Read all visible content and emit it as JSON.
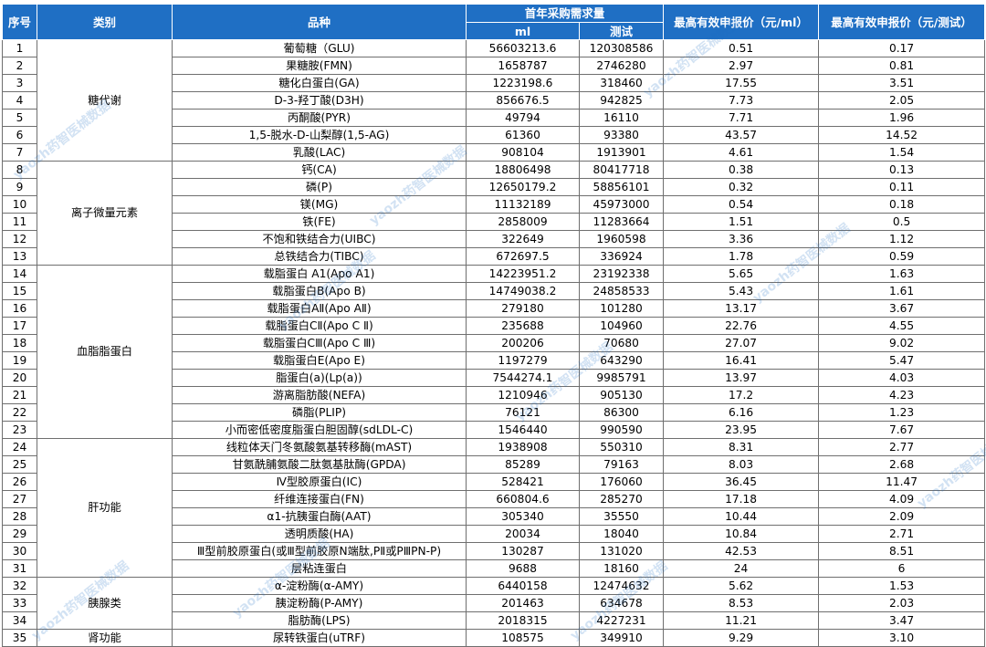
{
  "headers": {
    "seq": "序号",
    "category": "类别",
    "item": "品种",
    "demand": "首年采购需求量",
    "ml": "ml",
    "test": "测试",
    "price_ml": "最高有效申报价（元/ml）",
    "price_test": "最高有效申报价（元/测试）"
  },
  "watermark": "yaozh药智医械数据",
  "categories": [
    {
      "name": "糖代谢",
      "rows": [
        {
          "seq": "1",
          "item": "葡萄糖（GLU)",
          "ml": "56603213.6",
          "test": "120308586",
          "price_ml": "0.51",
          "price_test": "0.17"
        },
        {
          "seq": "2",
          "item": "果糖胺(FMN)",
          "ml": "1658787",
          "test": "2746280",
          "price_ml": "2.97",
          "price_test": "0.81"
        },
        {
          "seq": "3",
          "item": "糖化白蛋白(GA)",
          "ml": "1223198.6",
          "test": "318460",
          "price_ml": "17.55",
          "price_test": "3.51"
        },
        {
          "seq": "4",
          "item": "D-3-羟丁酸(D3H)",
          "ml": "856676.5",
          "test": "942825",
          "price_ml": "7.73",
          "price_test": "2.05"
        },
        {
          "seq": "5",
          "item": "丙酮酸(PYR)",
          "ml": "49794",
          "test": "16110",
          "price_ml": "7.71",
          "price_test": "1.96"
        },
        {
          "seq": "6",
          "item": "1,5-脱水-D-山梨醇(1,5-AG)",
          "ml": "61360",
          "test": "93380",
          "price_ml": "43.57",
          "price_test": "14.52"
        },
        {
          "seq": "7",
          "item": "乳酸(LAC)",
          "ml": "908104",
          "test": "1913901",
          "price_ml": "4.61",
          "price_test": "1.54"
        }
      ]
    },
    {
      "name": "离子微量元素",
      "rows": [
        {
          "seq": "8",
          "item": "钙(CA)",
          "ml": "18806498",
          "test": "80417718",
          "price_ml": "0.38",
          "price_test": "0.13"
        },
        {
          "seq": "9",
          "item": "磷(P)",
          "ml": "12650179.2",
          "test": "58856101",
          "price_ml": "0.32",
          "price_test": "0.11"
        },
        {
          "seq": "10",
          "item": "镁(MG)",
          "ml": "11132189",
          "test": "45973000",
          "price_ml": "0.54",
          "price_test": "0.18"
        },
        {
          "seq": "11",
          "item": "铁(FE)",
          "ml": "2858009",
          "test": "11283664",
          "price_ml": "1.51",
          "price_test": "0.5"
        },
        {
          "seq": "12",
          "item": "不饱和铁结合力(UIBC)",
          "ml": "322649",
          "test": "1960598",
          "price_ml": "3.36",
          "price_test": "1.12"
        },
        {
          "seq": "13",
          "item": "总铁结合力(TIBC)",
          "ml": "672697.5",
          "test": "336924",
          "price_ml": "1.78",
          "price_test": "0.59"
        }
      ]
    },
    {
      "name": "血脂脂蛋白",
      "rows": [
        {
          "seq": "14",
          "item": "载脂蛋白 A1(Apo A1)",
          "ml": "14223951.2",
          "test": "23192338",
          "price_ml": "5.65",
          "price_test": "1.63"
        },
        {
          "seq": "15",
          "item": "载脂蛋白B(Apo B)",
          "ml": "14749038.2",
          "test": "24858533",
          "price_ml": "5.43",
          "price_test": "1.61"
        },
        {
          "seq": "16",
          "item": "载脂蛋白AⅡ(Apo AⅡ)",
          "ml": "279180",
          "test": "101280",
          "price_ml": "13.17",
          "price_test": "3.67"
        },
        {
          "seq": "17",
          "item": "载脂蛋白CⅡ(Apo C Ⅱ)",
          "ml": "235688",
          "test": "104960",
          "price_ml": "22.76",
          "price_test": "4.55"
        },
        {
          "seq": "18",
          "item": "载脂蛋白CⅢ(Apo C Ⅲ)",
          "ml": "200206",
          "test": "70680",
          "price_ml": "27.07",
          "price_test": "9.02"
        },
        {
          "seq": "19",
          "item": "载脂蛋白E(Apo E)",
          "ml": "1197279",
          "test": "643290",
          "price_ml": "16.41",
          "price_test": "5.47"
        },
        {
          "seq": "20",
          "item": "脂蛋白(a)(Lp(a))",
          "ml": "7544274.1",
          "test": "9985791",
          "price_ml": "13.97",
          "price_test": "4.03"
        },
        {
          "seq": "21",
          "item": "游离脂肪酸(NEFA)",
          "ml": "1210946",
          "test": "905130",
          "price_ml": "17.2",
          "price_test": "4.23"
        },
        {
          "seq": "22",
          "item": "磷脂(PLIP)",
          "ml": "76121",
          "test": "86300",
          "price_ml": "6.16",
          "price_test": "1.23"
        },
        {
          "seq": "23",
          "item": "小而密低密度脂蛋白胆固醇(sdLDL-C)",
          "ml": "1546440",
          "test": "990590",
          "price_ml": "23.95",
          "price_test": "7.67"
        }
      ]
    },
    {
      "name": "肝功能",
      "rows": [
        {
          "seq": "24",
          "item": "线粒体天门冬氨酸氨基转移酶(mAST)",
          "ml": "1938908",
          "test": "550310",
          "price_ml": "8.31",
          "price_test": "2.77"
        },
        {
          "seq": "25",
          "item": "甘氨酰脯氨酸二肽氨基肽酶(GPDA)",
          "ml": "85289",
          "test": "79163",
          "price_ml": "8.03",
          "price_test": "2.68"
        },
        {
          "seq": "26",
          "item": "Ⅳ型胶原蛋白(IC)",
          "ml": "528421",
          "test": "176060",
          "price_ml": "36.45",
          "price_test": "11.47"
        },
        {
          "seq": "27",
          "item": "纤维连接蛋白(FN)",
          "ml": "660804.6",
          "test": "285270",
          "price_ml": "17.18",
          "price_test": "4.09"
        },
        {
          "seq": "28",
          "item": "α1-抗胰蛋白酶(AAT)",
          "ml": "305340",
          "test": "35550",
          "price_ml": "10.44",
          "price_test": "2.09"
        },
        {
          "seq": "29",
          "item": "透明质酸(HA)",
          "ml": "20034",
          "test": "18040",
          "price_ml": "10.84",
          "price_test": "2.71"
        },
        {
          "seq": "30",
          "item": "Ⅲ型前胶原蛋白(或Ⅲ型前胶原N端肽,PⅡ或PⅢPN-P)",
          "ml": "130287",
          "test": "131020",
          "price_ml": "42.53",
          "price_test": "8.51"
        },
        {
          "seq": "31",
          "item": "层粘连蛋白",
          "ml": "9688",
          "test": "18160",
          "price_ml": "24",
          "price_test": "6"
        }
      ]
    },
    {
      "name": "胰腺类",
      "rows": [
        {
          "seq": "32",
          "item": "α-淀粉酶(α-AMY)",
          "ml": "6440158",
          "test": "12474632",
          "price_ml": "5.62",
          "price_test": "1.53"
        },
        {
          "seq": "33",
          "item": "胰淀粉酶(P-AMY)",
          "ml": "201463",
          "test": "634678",
          "price_ml": "8.53",
          "price_test": "2.03"
        },
        {
          "seq": "34",
          "item": "脂肪酶(LPS)",
          "ml": "2018315",
          "test": "4227231",
          "price_ml": "11.21",
          "price_test": "3.47"
        }
      ]
    },
    {
      "name": "肾功能",
      "rows": [
        {
          "seq": "35",
          "item": "尿转铁蛋白(uTRF)",
          "ml": "108575",
          "test": "349910",
          "price_ml": "9.29",
          "price_test": "3.10"
        }
      ]
    }
  ]
}
